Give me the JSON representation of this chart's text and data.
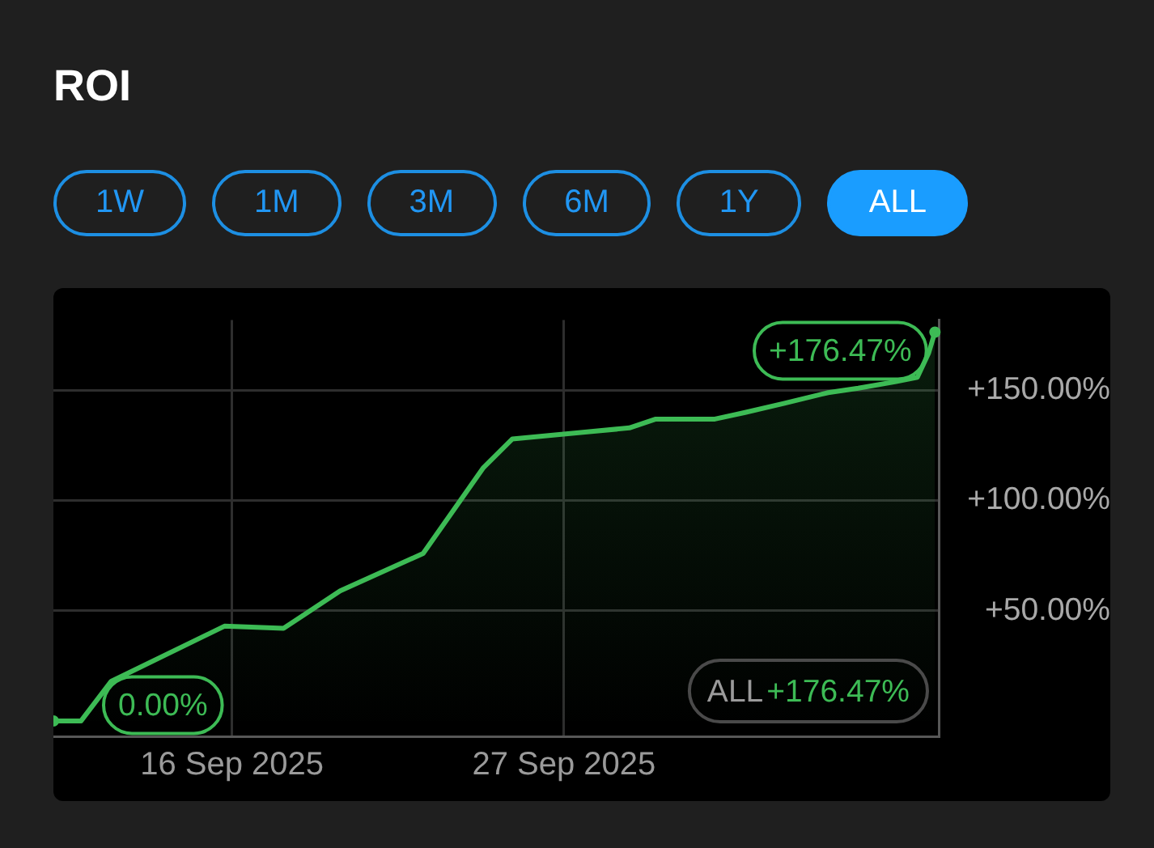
{
  "chart_data": {
    "type": "area",
    "title": "ROI",
    "x": [
      "2025-09-10T02:00",
      "2025-09-11",
      "2025-09-12",
      "2025-09-15T18:00",
      "2025-09-17T17:00",
      "2025-09-19T14:00",
      "2025-09-22T08:00",
      "2025-09-24T08:00",
      "2025-09-25T07:00",
      "2025-09-27T15:00",
      "2025-09-29T04:00",
      "2025-09-30T01:00",
      "2025-10-02",
      "2025-10-03",
      "2025-10-04T06:00",
      "2025-10-05T18:00",
      "2025-10-06T18:00",
      "2025-10-08",
      "2025-10-08T17:00",
      "2025-10-09T02:00",
      "2025-10-09T07:00"
    ],
    "series": [
      {
        "color": "#3dbb55",
        "values": [
          0,
          0,
          18,
          43,
          42,
          59,
          76,
          115,
          128,
          131,
          133,
          137,
          137,
          140,
          144,
          149,
          151,
          154,
          156,
          167,
          176.47
        ]
      }
    ],
    "xlim": [
      "2025-09-10T02:00",
      "2025-10-09T10:00"
    ],
    "xticks": [
      {
        "value": "2025-09-16",
        "label": "16 Sep 2025"
      },
      {
        "value": "2025-09-27",
        "label": "27 Sep 2025"
      }
    ],
    "ylim": [
      -7,
      182
    ],
    "yticks": [
      {
        "value": 50,
        "label": "+50.00%"
      },
      {
        "value": 100,
        "label": "+100.00%"
      },
      {
        "value": 150,
        "label": "+150.00%"
      }
    ],
    "grid": true,
    "annotations": [
      "1W",
      "1M",
      "3M",
      "6M",
      "1Y",
      "ALL",
      {
        "text": "0.00%",
        "x": "2025-09-10T02:00",
        "y": 0
      },
      {
        "text": "+176.47%",
        "x": "2025-10-09T07:00",
        "y": 176.47
      },
      "ALL+176.47%"
    ]
  }
}
